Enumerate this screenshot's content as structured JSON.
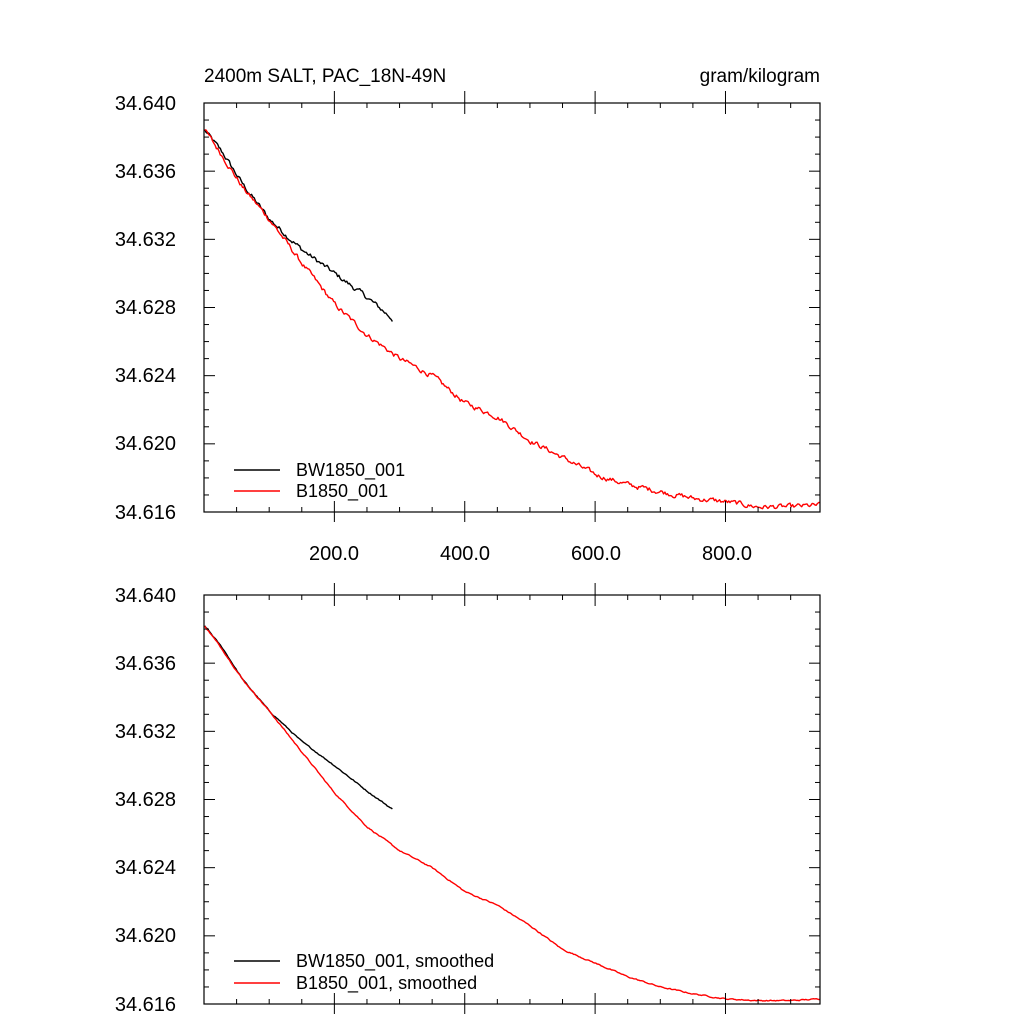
{
  "chart_data": [
    {
      "type": "line",
      "title": "2400m SALT, PAC_18N-49N",
      "units": "gram/kilogram",
      "xlim": [
        0,
        945
      ],
      "ylim": [
        34.616,
        34.64
      ],
      "yticks": [
        "34.640",
        "34.636",
        "34.632",
        "34.628",
        "34.624",
        "34.620",
        "34.616"
      ],
      "xticks": [
        "200.0",
        "400.0",
        "600.0",
        "800.0"
      ],
      "legend_position": "bottom-left",
      "series": [
        {
          "name": "BW1850_001",
          "color": "#000000",
          "noise": 0.00025,
          "points": [
            [
              1,
              34.6384
            ],
            [
              30,
              34.637
            ],
            [
              60,
              34.6352
            ],
            [
              100,
              34.6332
            ],
            [
              150,
              34.6314
            ],
            [
              200,
              34.63
            ],
            [
              250,
              34.6286
            ],
            [
              290,
              34.6273
            ]
          ]
        },
        {
          "name": "B1850_001",
          "color": "#ff0000",
          "noise": 0.00025,
          "points": [
            [
              1,
              34.6384
            ],
            [
              30,
              34.6368
            ],
            [
              60,
              34.635
            ],
            [
              100,
              34.6332
            ],
            [
              150,
              34.6306
            ],
            [
              200,
              34.6282
            ],
            [
              250,
              34.6264
            ],
            [
              300,
              34.625
            ],
            [
              350,
              34.624
            ],
            [
              400,
              34.6224
            ],
            [
              450,
              34.6216
            ],
            [
              500,
              34.6202
            ],
            [
              550,
              34.6192
            ],
            [
              600,
              34.6182
            ],
            [
              650,
              34.6176
            ],
            [
              700,
              34.6172
            ],
            [
              750,
              34.6168
            ],
            [
              800,
              34.6166
            ],
            [
              850,
              34.6163
            ],
            [
              900,
              34.6163
            ],
            [
              945,
              34.6164
            ]
          ]
        }
      ]
    },
    {
      "type": "line",
      "xlim": [
        0,
        945
      ],
      "ylim": [
        34.616,
        34.64
      ],
      "yticks": [
        "34.640",
        "34.636",
        "34.632",
        "34.628",
        "34.624",
        "34.620",
        "34.616"
      ],
      "legend_position": "bottom-left",
      "series": [
        {
          "name": "BW1850_001, smoothed",
          "color": "#000000",
          "noise": 6e-05,
          "points": [
            [
              1,
              34.6382
            ],
            [
              30,
              34.6368
            ],
            [
              60,
              34.635
            ],
            [
              100,
              34.6332
            ],
            [
              150,
              34.6314
            ],
            [
              200,
              34.63
            ],
            [
              250,
              34.6285
            ],
            [
              290,
              34.6274
            ]
          ]
        },
        {
          "name": "B1850_001, smoothed",
          "color": "#ff0000",
          "noise": 6e-05,
          "points": [
            [
              1,
              34.6382
            ],
            [
              30,
              34.6367
            ],
            [
              60,
              34.635
            ],
            [
              100,
              34.6332
            ],
            [
              150,
              34.6308
            ],
            [
              200,
              34.6284
            ],
            [
              250,
              34.6264
            ],
            [
              300,
              34.625
            ],
            [
              350,
              34.624
            ],
            [
              400,
              34.6226
            ],
            [
              450,
              34.6218
            ],
            [
              500,
              34.6206
            ],
            [
              550,
              34.6192
            ],
            [
              600,
              34.6184
            ],
            [
              650,
              34.6176
            ],
            [
              700,
              34.617
            ],
            [
              750,
              34.6166
            ],
            [
              800,
              34.6163
            ],
            [
              850,
              34.6162
            ],
            [
              900,
              34.6162
            ],
            [
              945,
              34.6163
            ]
          ]
        }
      ]
    }
  ]
}
